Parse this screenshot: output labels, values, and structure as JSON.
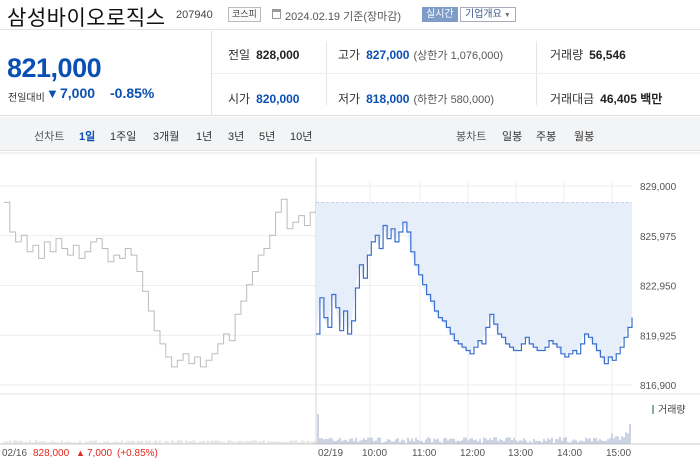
{
  "header": {
    "name": "삼성바이오로직스",
    "code": "207940",
    "market": "코스피",
    "date_text": "2024.02.19 기준(장마감)",
    "realtime": "실시간",
    "company_info": "기업개요"
  },
  "summary": {
    "price": "821,000",
    "change_label": "전일대비",
    "change_direction": "down",
    "change_value": "7,000",
    "change_pct": "-0.85%",
    "stats": {
      "prev_close_label": "전일",
      "prev_close": "828,000",
      "high_label": "고가",
      "high": "827,000",
      "upper_limit": "(상한가 1,076,000)",
      "volume_label": "거래량",
      "volume": "56,546",
      "open_label": "시가",
      "open": "820,000",
      "low_label": "저가",
      "low": "818,000",
      "lower_limit": "(하한가 580,000)",
      "amount_label": "거래대금",
      "amount": "46,405 백만"
    }
  },
  "tabs": {
    "line_label": "선차트",
    "line_tabs": [
      "1일",
      "1주일",
      "3개월",
      "1년",
      "3년",
      "5년",
      "10년"
    ],
    "active": "1일",
    "candle_label": "봉차트",
    "candle_tabs": [
      "일봉",
      "주봉",
      "월봉"
    ]
  },
  "colors": {
    "up": "#e0281e",
    "down": "#0a4fb3",
    "today_line": "#3a6fd0",
    "today_fill": "#e6eefa",
    "prev_line": "#bcbcbc"
  },
  "chart_data": {
    "type": "line",
    "ylim": [
      816900,
      829000
    ],
    "yticks": [
      "829,000",
      "825,975",
      "822,950",
      "819,925",
      "816,900"
    ],
    "ytick_values": [
      829000,
      825975,
      822950,
      819925,
      816900
    ],
    "xticks": [
      "02/19",
      "10:00",
      "11:00",
      "12:00",
      "13:00",
      "14:00",
      "15:00"
    ],
    "prev_close": 828000,
    "series": [
      {
        "day": "02/16",
        "values": [
          828000,
          826200,
          825600,
          826000,
          825000,
          825400,
          824600,
          825600,
          825000,
          825800,
          825200,
          824800,
          825400,
          824600,
          825000,
          825600,
          825800,
          825200,
          824400,
          824800,
          824600,
          825200,
          824800,
          823800,
          822600,
          821400,
          820200,
          819400,
          818600,
          818000,
          818400,
          818800,
          818200,
          818600,
          818000,
          818400,
          818800,
          819400,
          820000,
          819600,
          821200,
          822000,
          823000,
          823800,
          824800,
          825200,
          826000,
          827400,
          828200,
          826400,
          826800,
          827200,
          826600,
          827400,
          828000
        ]
      },
      {
        "day": "02/19",
        "values": [
          820000,
          822200,
          821000,
          820400,
          822400,
          821600,
          820200,
          821400,
          820000,
          820800,
          822800,
          824200,
          823400,
          824800,
          825600,
          826000,
          825200,
          826600,
          825800,
          826400,
          825600,
          826200,
          826800,
          826200,
          825000,
          824200,
          823600,
          823000,
          822400,
          822000,
          821400,
          821000,
          820800,
          820400,
          820000,
          819600,
          819400,
          819200,
          819000,
          818800,
          819200,
          819600,
          819400,
          820400,
          821200,
          820600,
          820000,
          819800,
          819400,
          819200,
          819000,
          819000,
          819400,
          819800,
          819400,
          819200,
          819000,
          819000,
          819200,
          819600,
          819400,
          819200,
          818800,
          818600,
          818800,
          819000,
          818800,
          819400,
          820000,
          819800,
          819400,
          819000,
          818600,
          818200,
          818600,
          818400,
          818800,
          819200,
          819800,
          820400,
          821000
        ]
      }
    ],
    "volume_label": "거래량",
    "bottom_readout": {
      "day": "02/16",
      "price": "828,000",
      "change": "7,000",
      "pct": "(+0.85%)"
    }
  }
}
